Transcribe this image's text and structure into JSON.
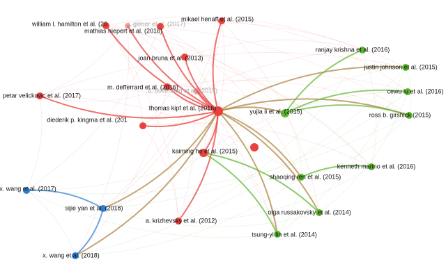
{
  "nodes": [
    {
      "label": "william l. hamilton et al. (20",
      "color": "#e8413e"
    },
    {
      "label": "j. gilmer et al. (2017)",
      "color": "#e8413e"
    },
    {
      "label": "mikael henaff et al. (2015)",
      "color": "#e8413e"
    },
    {
      "label": "mathias niepert et al. (2016)",
      "color": "#e8413e"
    },
    {
      "label": "joan bruna et al. (2013)",
      "color": "#e8413e"
    },
    {
      "label": "m. defferrard et al. (2016)",
      "color": "#e8413e"
    },
    {
      "label": "d. duvenaud et al. (2015)",
      "color": "#e8413e"
    },
    {
      "label": "petar velickovic et al. (2017)",
      "color": "#e8413e"
    },
    {
      "label": "diederik p. kingma et al. (201",
      "color": "#e8413e"
    },
    {
      "label": "thomas kipf et al. (2016)",
      "color": "#e8413e"
    },
    {
      "label": "kaiming he et al. (2015)",
      "color": "#e8413e"
    },
    {
      "label": "yujia li et al. (2015)",
      "color": "#5cb82f"
    },
    {
      "label": "ranjay krishna et al. (2016)",
      "color": "#5cb82f"
    },
    {
      "label": "justin johnson et al. (2015)",
      "color": "#5cb82f"
    },
    {
      "label": "cewu lu et al. (2016)",
      "color": "#5cb82f"
    },
    {
      "label": "ross b. girshick (2015)",
      "color": "#5cb82f"
    },
    {
      "label": "kenneth marino et al. (2016)",
      "color": "#5cb82f"
    },
    {
      "label": "shaoqing ren et al. (2015)",
      "color": "#5cb82f"
    },
    {
      "label": "olga russakovsky et al. (2014)",
      "color": "#5cb82f"
    },
    {
      "label": "tsung-yi lin et al. (2014)",
      "color": "#5cb82f"
    },
    {
      "label": "a. krizhevsky et al. (2012)",
      "color": "#e8413e"
    },
    {
      "label": "x. wang et al. (2017)",
      "color": "#2f7fd4"
    },
    {
      "label": "sijie yan et al. (2018)",
      "color": "#2f7fd4"
    },
    {
      "label": "x. wang et al. (2018)",
      "color": "#2f7fd4"
    }
  ]
}
